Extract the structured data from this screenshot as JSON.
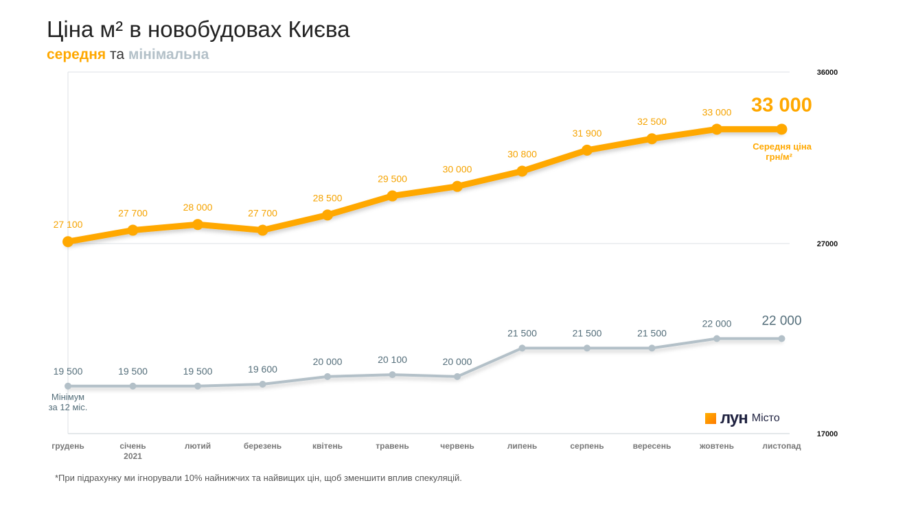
{
  "chart_data": {
    "type": "line",
    "title": "Ціна м² в новобудовах Києва",
    "subtitle": {
      "part1": "середня",
      "part2": " та ",
      "part3": "мінімальна"
    },
    "categories": [
      "грудень",
      "січень",
      "лютий",
      "березень",
      "квітень",
      "травень",
      "червень",
      "липень",
      "серпень",
      "вересень",
      "жовтень",
      "листопад"
    ],
    "category_sublabels": {
      "1": "2021"
    },
    "ylim": [
      17000,
      36000
    ],
    "y_ticks": [
      17000,
      27000,
      36000
    ],
    "y_tick_labels": [
      "17000",
      "27000",
      "36000"
    ],
    "y_axis_side": "right",
    "series": [
      {
        "key": "avg",
        "color": "#FFA800",
        "label_color": "#F5A300",
        "values": [
          27100,
          27700,
          28000,
          27700,
          28500,
          29500,
          30000,
          30800,
          31900,
          32500,
          33000,
          33000
        ],
        "labels": [
          "27 100",
          "27 700",
          "28 000",
          "27 700",
          "28 500",
          "29 500",
          "30 000",
          "30 800",
          "31 900",
          "32 500",
          "33 000",
          ""
        ],
        "end_label": "33 000",
        "end_caption": [
          "Середня ціна",
          "грн/м²"
        ]
      },
      {
        "key": "min",
        "color": "#B3C0C8",
        "label_color": "#546E7A",
        "values": [
          19500,
          19500,
          19500,
          19600,
          20000,
          20100,
          20000,
          21500,
          21500,
          21500,
          22000,
          22000
        ],
        "labels": [
          "19 500",
          "19 500",
          "19 500",
          "19 600",
          "20 000",
          "20 100",
          "20 000",
          "21 500",
          "21 500",
          "21 500",
          "22 000",
          ""
        ],
        "end_label": "22 000",
        "start_caption": [
          "Мінімум",
          "за 12 міс."
        ]
      }
    ]
  },
  "footnote": "*При підрахунку ми ігнорували 10% найнижчих та найвищих цін, щоб зменшити вплив спекуляцій.",
  "logo": {
    "name": "лун",
    "suffix": "Місто"
  }
}
